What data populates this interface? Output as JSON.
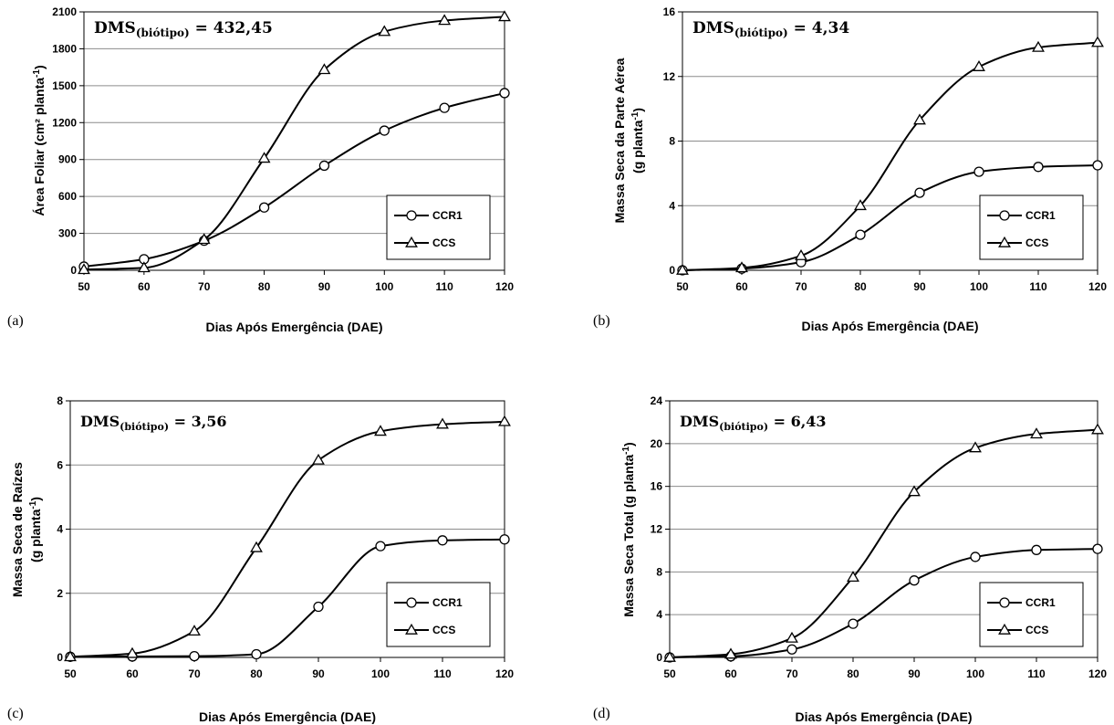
{
  "chart_data": [
    {
      "type": "line",
      "panel_label": "(a)",
      "annotation": {
        "prefix": "DMS",
        "subscript": "(biótipo)",
        "value": " = 432,45"
      },
      "ylabel": [
        "Área Foliar (cm² planta",
        "-1",
        ")"
      ],
      "xlabel": "Dias Após Emergência (DAE)",
      "xlim": [
        50,
        120
      ],
      "xticks": [
        50,
        60,
        70,
        80,
        90,
        100,
        110,
        120
      ],
      "ylim": [
        0,
        2100
      ],
      "yticks": [
        0,
        300,
        600,
        900,
        1200,
        1500,
        1800,
        2100
      ],
      "grid": "horizontal",
      "legend_position": "bottom-right",
      "series": [
        {
          "name": "CCR1",
          "marker": "circle",
          "x": [
            50,
            60,
            70,
            80,
            90,
            100,
            110,
            120
          ],
          "y": [
            30,
            90,
            240,
            510,
            850,
            1135,
            1320,
            1440
          ]
        },
        {
          "name": "CCS",
          "marker": "triangle",
          "x": [
            50,
            60,
            70,
            80,
            90,
            100,
            110,
            120
          ],
          "y": [
            5,
            20,
            250,
            910,
            1630,
            1940,
            2030,
            2060
          ]
        }
      ]
    },
    {
      "type": "line",
      "panel_label": "(b)",
      "annotation": {
        "prefix": "DMS",
        "subscript": "(biótipo)",
        "value": " = 4,34"
      },
      "ylabel": [
        "Massa Seca da Parte Aérea",
        "(g planta",
        "-1",
        ")"
      ],
      "xlabel": "Dias Após Emergência (DAE)",
      "xlim": [
        50,
        120
      ],
      "xticks": [
        50,
        60,
        70,
        80,
        90,
        100,
        110,
        120
      ],
      "ylim": [
        0,
        16
      ],
      "yticks": [
        0,
        4,
        8,
        12,
        16
      ],
      "grid": "horizontal",
      "legend_position": "bottom-right",
      "series": [
        {
          "name": "CCR1",
          "marker": "circle",
          "x": [
            50,
            60,
            70,
            80,
            90,
            100,
            110,
            120
          ],
          "y": [
            0.0,
            0.1,
            0.5,
            2.2,
            4.8,
            6.1,
            6.4,
            6.5
          ]
        },
        {
          "name": "CCS",
          "marker": "triangle",
          "x": [
            50,
            60,
            70,
            80,
            90,
            100,
            110,
            120
          ],
          "y": [
            0.0,
            0.15,
            0.9,
            4.0,
            9.3,
            12.6,
            13.8,
            14.1
          ]
        }
      ]
    },
    {
      "type": "line",
      "panel_label": "(c)",
      "annotation": {
        "prefix": "DMS",
        "subscript": "(biótipo)",
        "value": " = 3,56"
      },
      "ylabel": [
        "Massa Seca de Raízes",
        "(g planta",
        "-1",
        ")"
      ],
      "xlabel": "Dias Após Emergência (DAE)",
      "xlim": [
        50,
        120
      ],
      "xticks": [
        50,
        60,
        70,
        80,
        90,
        100,
        110,
        120
      ],
      "ylim": [
        0,
        8
      ],
      "yticks": [
        0,
        2,
        4,
        6,
        8
      ],
      "grid": "horizontal",
      "legend_position": "bottom-right",
      "series": [
        {
          "name": "CCR1",
          "marker": "circle",
          "x": [
            50,
            60,
            70,
            80,
            90,
            100,
            110,
            120
          ],
          "y": [
            0.02,
            0.03,
            0.04,
            0.1,
            1.58,
            3.47,
            3.65,
            3.68
          ]
        },
        {
          "name": "CCS",
          "marker": "triangle",
          "x": [
            50,
            60,
            70,
            80,
            90,
            100,
            110,
            120
          ],
          "y": [
            0.02,
            0.12,
            0.82,
            3.42,
            6.15,
            7.05,
            7.27,
            7.35
          ]
        }
      ]
    },
    {
      "type": "line",
      "panel_label": "(d)",
      "annotation": {
        "prefix": "DMS",
        "subscript": "(biótipo)",
        "value": " = 6,43"
      },
      "ylabel": [
        "Massa Seca Total (g planta",
        "-1",
        ")"
      ],
      "xlabel": "Dias Após Emergência (DAE)",
      "xlim": [
        50,
        120
      ],
      "xticks": [
        50,
        60,
        70,
        80,
        90,
        100,
        110,
        120
      ],
      "ylim": [
        0,
        24
      ],
      "yticks": [
        0,
        4,
        8,
        12,
        16,
        20,
        24
      ],
      "grid": "horizontal",
      "legend_position": "bottom-right",
      "series": [
        {
          "name": "CCR1",
          "marker": "circle",
          "x": [
            50,
            60,
            70,
            80,
            90,
            100,
            110,
            120
          ],
          "y": [
            0.0,
            0.1,
            0.75,
            3.15,
            7.2,
            9.4,
            10.05,
            10.15
          ]
        },
        {
          "name": "CCS",
          "marker": "triangle",
          "x": [
            50,
            60,
            70,
            80,
            90,
            100,
            110,
            120
          ],
          "y": [
            0.0,
            0.3,
            1.8,
            7.5,
            15.5,
            19.6,
            20.9,
            21.3
          ]
        }
      ]
    }
  ]
}
